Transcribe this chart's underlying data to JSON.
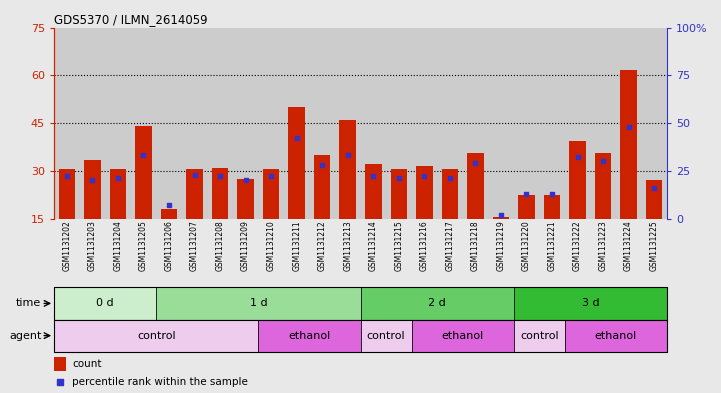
{
  "title": "GDS5370 / ILMN_2614059",
  "samples": [
    "GSM1131202",
    "GSM1131203",
    "GSM1131204",
    "GSM1131205",
    "GSM1131206",
    "GSM1131207",
    "GSM1131208",
    "GSM1131209",
    "GSM1131210",
    "GSM1131211",
    "GSM1131212",
    "GSM1131213",
    "GSM1131214",
    "GSM1131215",
    "GSM1131216",
    "GSM1131217",
    "GSM1131218",
    "GSM1131219",
    "GSM1131220",
    "GSM1131221",
    "GSM1131222",
    "GSM1131223",
    "GSM1131224",
    "GSM1131225"
  ],
  "count_values": [
    30.5,
    33.5,
    30.5,
    44.0,
    18.0,
    30.5,
    31.0,
    27.5,
    30.5,
    50.0,
    35.0,
    46.0,
    32.0,
    30.5,
    31.5,
    30.5,
    35.5,
    15.5,
    22.5,
    22.5,
    39.5,
    35.5,
    61.5,
    27.0
  ],
  "percentile_values": [
    22,
    20,
    21,
    33,
    7,
    23,
    22,
    20,
    22,
    42,
    28,
    33,
    22,
    21,
    22,
    21,
    29,
    2,
    13,
    13,
    32,
    30,
    48,
    16
  ],
  "bar_bottom": 15,
  "left_ylim": [
    15,
    75
  ],
  "right_ylim": [
    0,
    100
  ],
  "left_yticks": [
    15,
    30,
    45,
    60,
    75
  ],
  "right_yticks": [
    0,
    25,
    50,
    75,
    100
  ],
  "right_yticklabels": [
    "0",
    "25",
    "50",
    "75",
    "100%"
  ],
  "bar_color": "#cc2200",
  "percentile_color": "#3333cc",
  "axis_color_left": "#cc2200",
  "axis_color_right": "#3333cc",
  "time_groups": [
    {
      "label": "0 d",
      "start": 0,
      "end": 4,
      "color": "#cceecc"
    },
    {
      "label": "1 d",
      "start": 4,
      "end": 12,
      "color": "#99dd99"
    },
    {
      "label": "2 d",
      "start": 12,
      "end": 18,
      "color": "#66cc66"
    },
    {
      "label": "3 d",
      "start": 18,
      "end": 24,
      "color": "#33bb33"
    }
  ],
  "agent_groups": [
    {
      "label": "control",
      "start": 0,
      "end": 8,
      "color": "#eeccee"
    },
    {
      "label": "ethanol",
      "start": 8,
      "end": 12,
      "color": "#dd66dd"
    },
    {
      "label": "control",
      "start": 12,
      "end": 14,
      "color": "#eeccee"
    },
    {
      "label": "ethanol",
      "start": 14,
      "end": 18,
      "color": "#dd66dd"
    },
    {
      "label": "control",
      "start": 18,
      "end": 20,
      "color": "#eeccee"
    },
    {
      "label": "ethanol",
      "start": 20,
      "end": 24,
      "color": "#dd66dd"
    }
  ],
  "bg_color": "#e8e8e8",
  "plot_bg": "#ffffff",
  "tick_bg_color": "#cccccc"
}
